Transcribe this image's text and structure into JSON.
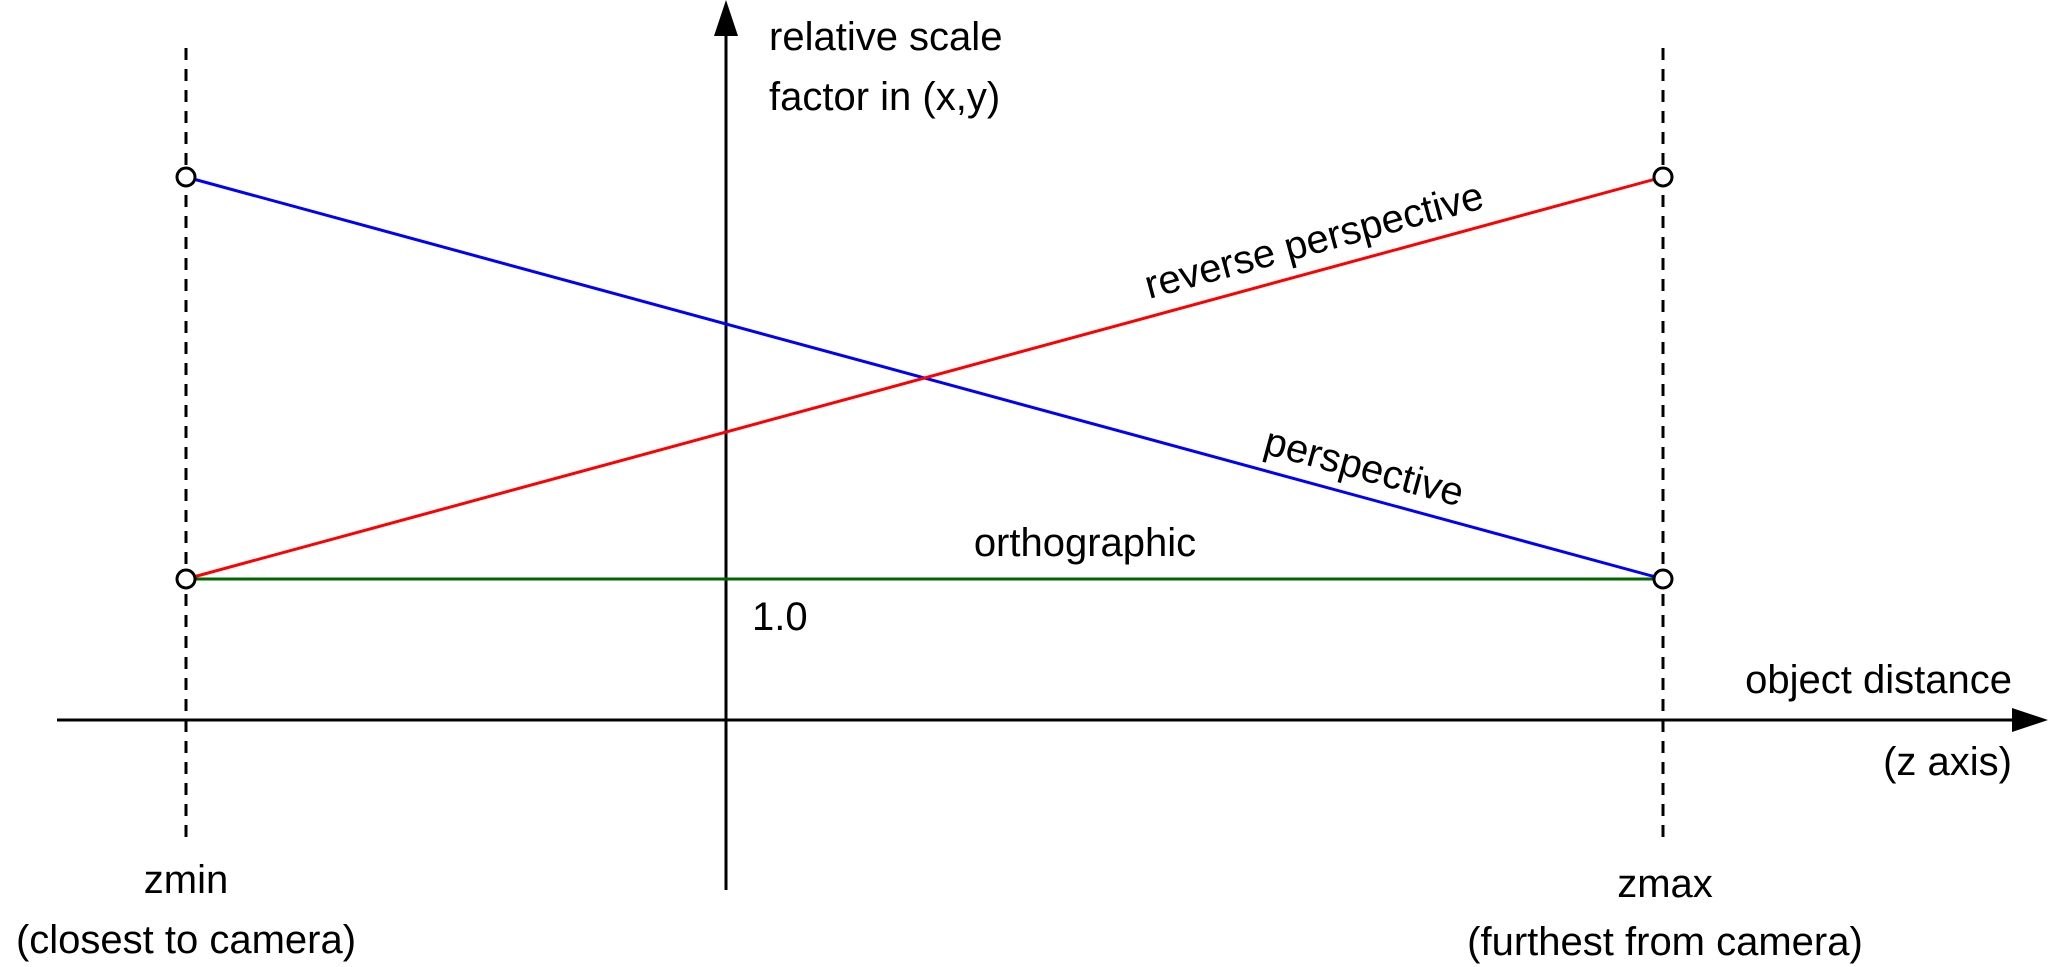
{
  "y_axis": {
    "label_line1": "relative scale",
    "label_line2": "factor in (x,y)"
  },
  "x_axis": {
    "label_line1": "object distance",
    "label_line2": "(z axis)"
  },
  "baseline_value": "1.0",
  "markers": {
    "zmin": {
      "label": "zmin",
      "caption": "(closest to camera)"
    },
    "zmax": {
      "label": "zmax",
      "caption": "(furthest from camera)"
    }
  },
  "lines": {
    "perspective": {
      "label": "perspective",
      "color": "#0000ff"
    },
    "reverse_perspective": {
      "label": "reverse perspective",
      "color": "#ff0000"
    },
    "orthographic": {
      "label": "orthographic",
      "color": "#006600"
    }
  }
}
